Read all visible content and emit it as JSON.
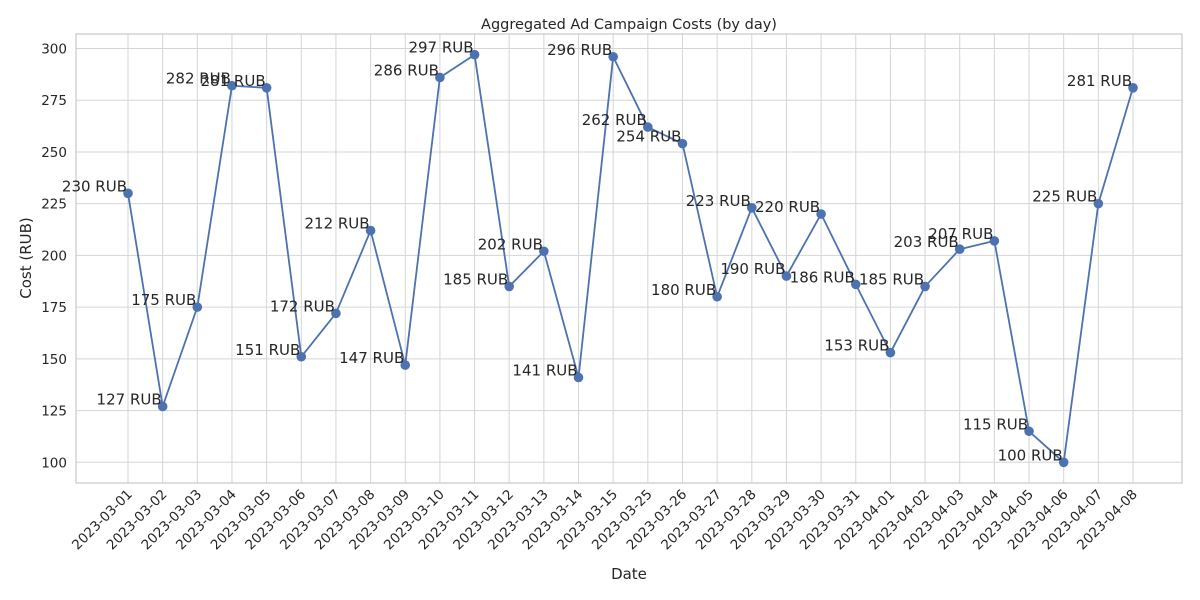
{
  "chart_data": {
    "type": "line",
    "title": "Aggregated Ad Campaign Costs (by day)",
    "xlabel": "Date",
    "ylabel": "Cost (RUB)",
    "categories": [
      "2023-03-01",
      "2023-03-02",
      "2023-03-03",
      "2023-03-04",
      "2023-03-05",
      "2023-03-06",
      "2023-03-07",
      "2023-03-08",
      "2023-03-09",
      "2023-03-10",
      "2023-03-11",
      "2023-03-12",
      "2023-03-13",
      "2023-03-14",
      "2023-03-15",
      "2023-03-25",
      "2023-03-26",
      "2023-03-27",
      "2023-03-28",
      "2023-03-29",
      "2023-03-30",
      "2023-03-31",
      "2023-04-01",
      "2023-04-02",
      "2023-04-03",
      "2023-04-04",
      "2023-04-05",
      "2023-04-06",
      "2023-04-07",
      "2023-04-08"
    ],
    "series": [
      {
        "values": [
          230,
          127,
          175,
          282,
          281,
          151,
          172,
          212,
          147,
          286,
          297,
          185,
          202,
          141,
          296,
          262,
          254,
          180,
          223,
          190,
          220,
          186,
          153,
          185,
          203,
          207,
          115,
          100,
          225,
          281
        ],
        "labels": [
          "230 RUB",
          "127 RUB",
          "175 RUB",
          "282 RUB",
          "281 RUB",
          "151 RUB",
          "172 RUB",
          "212 RUB",
          "147 RUB",
          "286 RUB",
          "297 RUB",
          "185 RUB",
          "202 RUB",
          "141 RUB",
          "296 RUB",
          "262 RUB",
          "254 RUB",
          "180 RUB",
          "223 RUB",
          "190 RUB",
          "220 RUB",
          "186 RUB",
          "153 RUB",
          "185 RUB",
          "203 RUB",
          "207 RUB",
          "115 RUB",
          "100 RUB",
          "225 RUB",
          "281 RUB"
        ]
      }
    ],
    "ylim": [
      90,
      307
    ],
    "yticks": [
      100,
      125,
      150,
      175,
      200,
      225,
      250,
      275,
      300
    ],
    "grid": true,
    "line_color": "#4c72b0"
  }
}
